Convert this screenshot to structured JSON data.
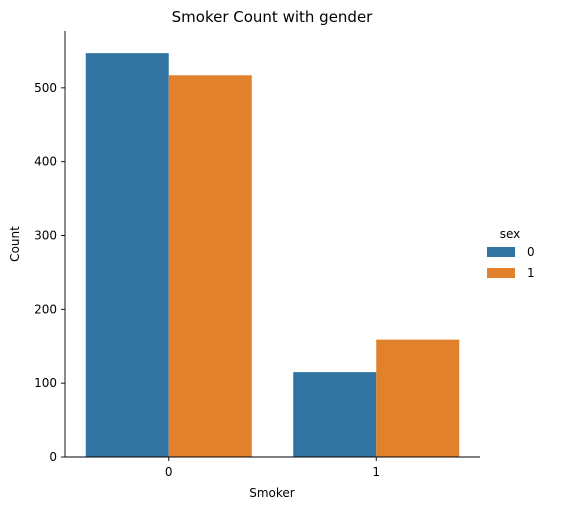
{
  "chart_data": {
    "type": "bar",
    "title": "Smoker Count with gender",
    "xlabel": "Smoker",
    "ylabel": "Count",
    "categories": [
      "0",
      "1"
    ],
    "series": [
      {
        "name": "0",
        "values": [
          547,
          115
        ],
        "color": "#3274a1"
      },
      {
        "name": "1",
        "values": [
          517,
          159
        ],
        "color": "#e1812c"
      }
    ],
    "ylim": [
      0,
      577
    ],
    "yticks": [
      0,
      100,
      200,
      300,
      400,
      500
    ],
    "legend": {
      "title": "sex",
      "placement": "right"
    },
    "grid": false
  }
}
